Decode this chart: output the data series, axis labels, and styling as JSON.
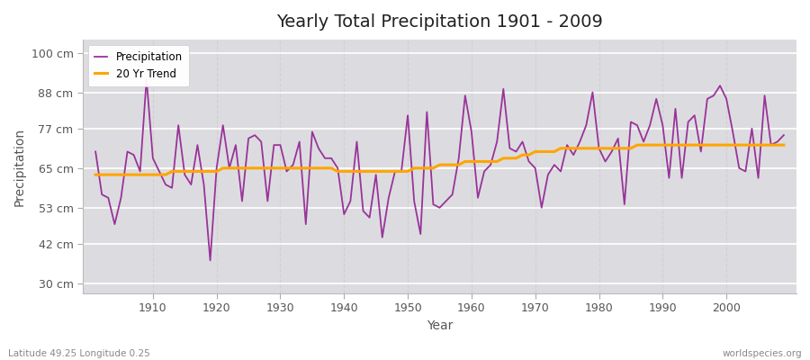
{
  "title": "Yearly Total Precipitation 1901 - 2009",
  "xlabel": "Year",
  "ylabel": "Precipitation",
  "lat_lon_label": "Latitude 49.25 Longitude 0.25",
  "watermark": "worldspecies.org",
  "years": [
    1901,
    1902,
    1903,
    1904,
    1905,
    1906,
    1907,
    1908,
    1909,
    1910,
    1911,
    1912,
    1913,
    1914,
    1915,
    1916,
    1917,
    1918,
    1919,
    1920,
    1921,
    1922,
    1923,
    1924,
    1925,
    1926,
    1927,
    1928,
    1929,
    1930,
    1931,
    1932,
    1933,
    1934,
    1935,
    1936,
    1937,
    1938,
    1939,
    1940,
    1941,
    1942,
    1943,
    1944,
    1945,
    1946,
    1947,
    1948,
    1949,
    1950,
    1951,
    1952,
    1953,
    1954,
    1955,
    1956,
    1957,
    1958,
    1959,
    1960,
    1961,
    1962,
    1963,
    1964,
    1965,
    1966,
    1967,
    1968,
    1969,
    1970,
    1971,
    1972,
    1973,
    1974,
    1975,
    1976,
    1977,
    1978,
    1979,
    1980,
    1981,
    1982,
    1983,
    1984,
    1985,
    1986,
    1987,
    1988,
    1989,
    1990,
    1991,
    1992,
    1993,
    1994,
    1995,
    1996,
    1997,
    1998,
    1999,
    2000,
    2001,
    2002,
    2003,
    2004,
    2005,
    2006,
    2007,
    2008,
    2009
  ],
  "precipitation": [
    70,
    57,
    56,
    48,
    56,
    70,
    69,
    64,
    92,
    68,
    64,
    60,
    59,
    78,
    63,
    60,
    72,
    60,
    37,
    65,
    78,
    65,
    72,
    55,
    74,
    75,
    73,
    55,
    72,
    72,
    64,
    66,
    73,
    48,
    76,
    71,
    68,
    68,
    65,
    51,
    55,
    73,
    52,
    50,
    63,
    44,
    56,
    64,
    64,
    81,
    55,
    45,
    82,
    54,
    53,
    55,
    57,
    68,
    87,
    76,
    56,
    64,
    66,
    73,
    89,
    71,
    70,
    73,
    67,
    65,
    53,
    63,
    66,
    64,
    72,
    69,
    73,
    78,
    88,
    71,
    67,
    70,
    74,
    54,
    79,
    78,
    73,
    78,
    86,
    78,
    62,
    83,
    62,
    79,
    81,
    70,
    86,
    87,
    90,
    86,
    76,
    65,
    64,
    77,
    62,
    87,
    72,
    73,
    75
  ],
  "trend": [
    63,
    63,
    63,
    63,
    63,
    63,
    63,
    63,
    63,
    63,
    63,
    63,
    64,
    64,
    64,
    64,
    64,
    64,
    64,
    64,
    65,
    65,
    65,
    65,
    65,
    65,
    65,
    65,
    65,
    65,
    65,
    65,
    65,
    65,
    65,
    65,
    65,
    65,
    64,
    64,
    64,
    64,
    64,
    64,
    64,
    64,
    64,
    64,
    64,
    64,
    65,
    65,
    65,
    65,
    66,
    66,
    66,
    66,
    67,
    67,
    67,
    67,
    67,
    67,
    68,
    68,
    68,
    69,
    69,
    70,
    70,
    70,
    70,
    71,
    71,
    71,
    71,
    71,
    71,
    71,
    71,
    71,
    71,
    71,
    71,
    72,
    72,
    72,
    72,
    72,
    72,
    72,
    72,
    72,
    72,
    72,
    72,
    72,
    72,
    72,
    72,
    72,
    72,
    72,
    72,
    72,
    72,
    72,
    72
  ],
  "precip_color": "#993399",
  "trend_color": "#FFA500",
  "fig_bg_color": "#ffffff",
  "plot_bg_color": "#dcdce0",
  "grid_color_h": "#ffffff",
  "grid_color_v": "#cccccc",
  "yticks": [
    30,
    42,
    53,
    65,
    77,
    88,
    100
  ],
  "ytick_labels": [
    "30 cm",
    "42 cm",
    "53 cm",
    "65 cm",
    "77 cm",
    "88 cm",
    "100 cm"
  ],
  "ylim": [
    27,
    104
  ],
  "xlim": [
    1899,
    2011
  ]
}
